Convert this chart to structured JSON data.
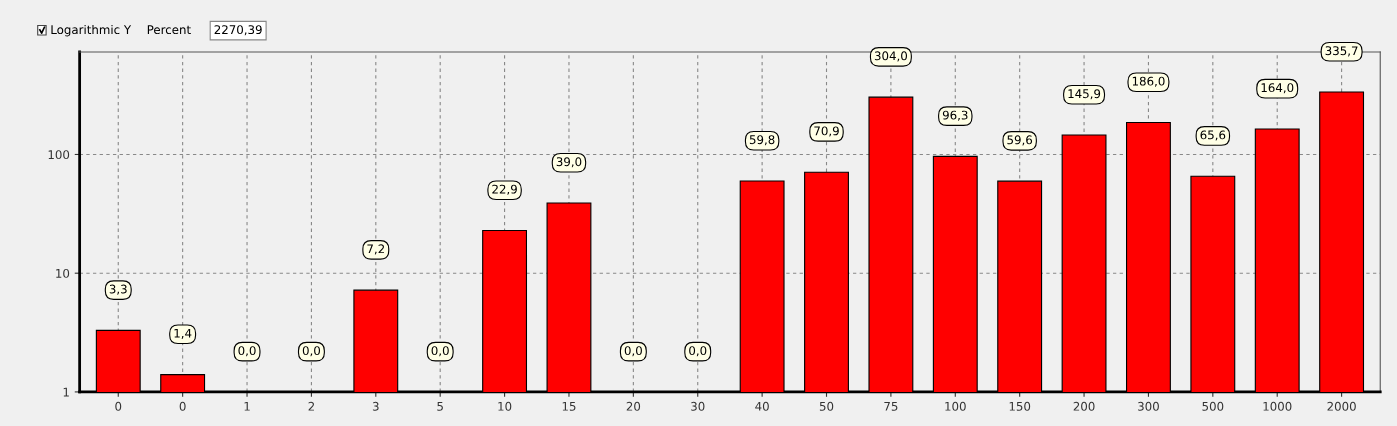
{
  "chart_data": {
    "type": "bar",
    "categories": [
      "0",
      "0",
      "1",
      "2",
      "3",
      "5",
      "10",
      "15",
      "20",
      "30",
      "40",
      "50",
      "75",
      "100",
      "150",
      "200",
      "300",
      "500",
      "1000",
      "2000"
    ],
    "values": [
      3.3,
      1.4,
      null,
      null,
      7.2,
      null,
      22.9,
      39.0,
      null,
      null,
      59.8,
      70.9,
      304.0,
      96.3,
      59.6,
      145.9,
      186.0,
      65.6,
      164.0,
      335.7
    ],
    "value_labels": [
      "3,3",
      "1,4",
      "0,0",
      "0,0",
      "7,2",
      "0,0",
      "22,9",
      "39,0",
      "0,0",
      "0,0",
      "59,8",
      "70,9",
      "304,0",
      "96,3",
      "59,6",
      "145,9",
      "186,0",
      "65,6",
      "164,0",
      "335,7"
    ],
    "color": "#ff0000",
    "log": "y",
    "ylim": [
      1,
      730
    ],
    "yticks": [
      1,
      10,
      100
    ],
    "grid": true,
    "annotations": [
      "Logarithmic Y",
      "Percent",
      "2270,39"
    ]
  }
}
